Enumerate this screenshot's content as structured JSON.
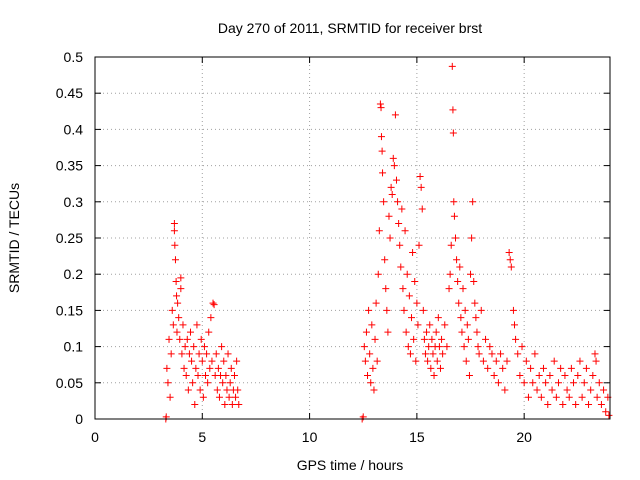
{
  "chart_data": {
    "type": "scatter",
    "title": "Day 270 of 2011, SRMTID for receiver brst",
    "xlabel": "GPS time / hours",
    "ylabel": "SRMTID / TECUs",
    "xlim": [
      0,
      24
    ],
    "ylim": [
      0,
      0.5
    ],
    "xticks": [
      0,
      5,
      10,
      15,
      20
    ],
    "yticks": [
      0,
      0.05,
      0.1,
      0.15,
      0.2,
      0.25,
      0.3,
      0.35,
      0.4,
      0.45,
      0.5
    ],
    "xtick_labels": [
      "0",
      "5",
      "10",
      "15",
      "20"
    ],
    "ytick_labels": [
      "0",
      "0.05",
      "0.1",
      "0.15",
      "0.2",
      "0.25",
      "0.3",
      "0.35",
      "0.4",
      "0.45",
      "0.5"
    ],
    "grid": true,
    "marker": "+",
    "color": "#ff0000",
    "series": [
      {
        "points": [
          [
            3.3,
            0.0
          ],
          [
            3.32,
            0.003
          ],
          [
            3.35,
            0.07
          ],
          [
            3.4,
            0.05
          ],
          [
            3.45,
            0.11
          ],
          [
            3.5,
            0.03
          ],
          [
            3.55,
            0.09
          ],
          [
            3.6,
            0.15
          ],
          [
            3.65,
            0.13
          ],
          [
            3.7,
            0.27
          ],
          [
            3.7,
            0.26
          ],
          [
            3.72,
            0.24
          ],
          [
            3.75,
            0.22
          ],
          [
            3.78,
            0.19
          ],
          [
            3.8,
            0.17
          ],
          [
            3.82,
            0.12
          ],
          [
            3.85,
            0.16
          ],
          [
            3.9,
            0.14
          ],
          [
            3.95,
            0.11
          ],
          [
            4.0,
            0.18
          ],
          [
            4.0,
            0.195
          ],
          [
            4.05,
            0.09
          ],
          [
            4.1,
            0.13
          ],
          [
            4.15,
            0.07
          ],
          [
            4.2,
            0.1
          ],
          [
            4.25,
            0.06
          ],
          [
            4.3,
            0.11
          ],
          [
            4.35,
            0.04
          ],
          [
            4.4,
            0.09
          ],
          [
            4.45,
            0.12
          ],
          [
            4.5,
            0.08
          ],
          [
            4.55,
            0.05
          ],
          [
            4.6,
            0.1
          ],
          [
            4.65,
            0.02
          ],
          [
            4.7,
            0.07
          ],
          [
            4.75,
            0.13
          ],
          [
            4.8,
            0.06
          ],
          [
            4.85,
            0.09
          ],
          [
            4.9,
            0.04
          ],
          [
            4.95,
            0.11
          ],
          [
            5.0,
            0.08
          ],
          [
            5.05,
            0.03
          ],
          [
            5.1,
            0.1
          ],
          [
            5.15,
            0.06
          ],
          [
            5.2,
            0.09
          ],
          [
            5.25,
            0.05
          ],
          [
            5.3,
            0.12
          ],
          [
            5.35,
            0.07
          ],
          [
            5.4,
            0.14
          ],
          [
            5.45,
            0.08
          ],
          [
            5.5,
            0.16
          ],
          [
            5.55,
            0.158
          ],
          [
            5.6,
            0.06
          ],
          [
            5.65,
            0.09
          ],
          [
            5.7,
            0.04
          ],
          [
            5.75,
            0.07
          ],
          [
            5.8,
            0.03
          ],
          [
            5.85,
            0.06
          ],
          [
            5.9,
            0.1
          ],
          [
            5.95,
            0.05
          ],
          [
            6.0,
            0.08
          ],
          [
            6.05,
            0.02
          ],
          [
            6.1,
            0.06
          ],
          [
            6.15,
            0.04
          ],
          [
            6.2,
            0.09
          ],
          [
            6.25,
            0.03
          ],
          [
            6.3,
            0.05
          ],
          [
            6.35,
            0.07
          ],
          [
            6.4,
            0.02
          ],
          [
            6.45,
            0.04
          ],
          [
            6.5,
            0.06
          ],
          [
            6.55,
            0.03
          ],
          [
            6.6,
            0.08
          ],
          [
            6.65,
            0.04
          ],
          [
            6.7,
            0.02
          ],
          [
            12.45,
            0.0
          ],
          [
            12.5,
            0.003
          ],
          [
            12.55,
            0.1
          ],
          [
            12.6,
            0.08
          ],
          [
            12.65,
            0.12
          ],
          [
            12.7,
            0.06
          ],
          [
            12.75,
            0.15
          ],
          [
            12.8,
            0.09
          ],
          [
            12.85,
            0.05
          ],
          [
            12.9,
            0.13
          ],
          [
            12.95,
            0.07
          ],
          [
            13.0,
            0.04
          ],
          [
            13.05,
            0.11
          ],
          [
            13.1,
            0.16
          ],
          [
            13.15,
            0.08
          ],
          [
            13.2,
            0.2
          ],
          [
            13.25,
            0.26
          ],
          [
            13.3,
            0.435
          ],
          [
            13.33,
            0.43
          ],
          [
            13.35,
            0.39
          ],
          [
            13.38,
            0.37
          ],
          [
            13.4,
            0.34
          ],
          [
            13.45,
            0.3
          ],
          [
            13.5,
            0.22
          ],
          [
            13.55,
            0.18
          ],
          [
            13.6,
            0.15
          ],
          [
            13.65,
            0.12
          ],
          [
            13.7,
            0.28
          ],
          [
            13.75,
            0.25
          ],
          [
            13.8,
            0.32
          ],
          [
            13.85,
            0.31
          ],
          [
            13.9,
            0.36
          ],
          [
            13.95,
            0.35
          ],
          [
            14.0,
            0.42
          ],
          [
            14.05,
            0.33
          ],
          [
            14.1,
            0.3
          ],
          [
            14.15,
            0.27
          ],
          [
            14.2,
            0.24
          ],
          [
            14.25,
            0.21
          ],
          [
            14.3,
            0.29
          ],
          [
            14.35,
            0.18
          ],
          [
            14.4,
            0.15
          ],
          [
            14.45,
            0.26
          ],
          [
            14.5,
            0.12
          ],
          [
            14.55,
            0.2
          ],
          [
            14.6,
            0.1
          ],
          [
            14.65,
            0.17
          ],
          [
            14.7,
            0.09
          ],
          [
            14.75,
            0.14
          ],
          [
            14.8,
            0.23
          ],
          [
            14.85,
            0.11
          ],
          [
            14.9,
            0.19
          ],
          [
            14.95,
            0.08
          ],
          [
            15.0,
            0.16
          ],
          [
            15.05,
            0.13
          ],
          [
            15.1,
            0.24
          ],
          [
            15.15,
            0.335
          ],
          [
            15.2,
            0.32
          ],
          [
            15.25,
            0.29
          ],
          [
            15.3,
            0.15
          ],
          [
            15.35,
            0.11
          ],
          [
            15.4,
            0.09
          ],
          [
            15.45,
            0.12
          ],
          [
            15.5,
            0.08
          ],
          [
            15.55,
            0.1
          ],
          [
            15.6,
            0.13
          ],
          [
            15.65,
            0.07
          ],
          [
            15.7,
            0.11
          ],
          [
            15.75,
            0.09
          ],
          [
            15.8,
            0.06
          ],
          [
            15.85,
            0.1
          ],
          [
            15.9,
            0.12
          ],
          [
            15.95,
            0.08
          ],
          [
            16.0,
            0.14
          ],
          [
            16.05,
            0.1
          ],
          [
            16.1,
            0.07
          ],
          [
            16.15,
            0.11
          ],
          [
            16.2,
            0.09
          ],
          [
            16.3,
            0.13
          ],
          [
            16.4,
            0.1
          ],
          [
            16.5,
            0.18
          ],
          [
            16.55,
            0.2
          ],
          [
            16.6,
            0.24
          ],
          [
            16.65,
            0.487
          ],
          [
            16.68,
            0.427
          ],
          [
            16.7,
            0.395
          ],
          [
            16.72,
            0.3
          ],
          [
            16.75,
            0.28
          ],
          [
            16.8,
            0.25
          ],
          [
            16.85,
            0.22
          ],
          [
            16.9,
            0.19
          ],
          [
            16.95,
            0.16
          ],
          [
            17.0,
            0.21
          ],
          [
            17.05,
            0.14
          ],
          [
            17.1,
            0.12
          ],
          [
            17.15,
            0.18
          ],
          [
            17.2,
            0.1
          ],
          [
            17.25,
            0.15
          ],
          [
            17.3,
            0.08
          ],
          [
            17.35,
            0.13
          ],
          [
            17.4,
            0.11
          ],
          [
            17.45,
            0.06
          ],
          [
            17.5,
            0.2
          ],
          [
            17.55,
            0.25
          ],
          [
            17.6,
            0.3
          ],
          [
            17.65,
            0.19
          ],
          [
            17.7,
            0.16
          ],
          [
            17.75,
            0.14
          ],
          [
            17.8,
            0.12
          ],
          [
            17.85,
            0.1
          ],
          [
            17.9,
            0.09
          ],
          [
            18.0,
            0.15
          ],
          [
            18.1,
            0.08
          ],
          [
            18.2,
            0.11
          ],
          [
            18.3,
            0.07
          ],
          [
            18.4,
            0.1
          ],
          [
            18.5,
            0.09
          ],
          [
            18.6,
            0.06
          ],
          [
            18.7,
            0.08
          ],
          [
            18.8,
            0.05
          ],
          [
            18.9,
            0.09
          ],
          [
            19.0,
            0.07
          ],
          [
            19.1,
            0.04
          ],
          [
            19.2,
            0.08
          ],
          [
            19.3,
            0.23
          ],
          [
            19.35,
            0.22
          ],
          [
            19.4,
            0.21
          ],
          [
            19.5,
            0.15
          ],
          [
            19.55,
            0.13
          ],
          [
            19.6,
            0.11
          ],
          [
            19.7,
            0.09
          ],
          [
            19.8,
            0.06
          ],
          [
            19.9,
            0.1
          ],
          [
            20.0,
            0.05
          ],
          [
            20.1,
            0.08
          ],
          [
            20.2,
            0.03
          ],
          [
            20.3,
            0.07
          ],
          [
            20.4,
            0.05
          ],
          [
            20.5,
            0.09
          ],
          [
            20.6,
            0.04
          ],
          [
            20.7,
            0.06
          ],
          [
            20.8,
            0.03
          ],
          [
            20.9,
            0.07
          ],
          [
            21.0,
            0.05
          ],
          [
            21.1,
            0.02
          ],
          [
            21.2,
            0.06
          ],
          [
            21.3,
            0.04
          ],
          [
            21.4,
            0.08
          ],
          [
            21.5,
            0.03
          ],
          [
            21.6,
            0.05
          ],
          [
            21.7,
            0.07
          ],
          [
            21.8,
            0.02
          ],
          [
            21.9,
            0.06
          ],
          [
            22.0,
            0.04
          ],
          [
            22.1,
            0.03
          ],
          [
            22.2,
            0.07
          ],
          [
            22.3,
            0.05
          ],
          [
            22.4,
            0.02
          ],
          [
            22.5,
            0.06
          ],
          [
            22.6,
            0.08
          ],
          [
            22.7,
            0.03
          ],
          [
            22.8,
            0.05
          ],
          [
            22.9,
            0.07
          ],
          [
            23.0,
            0.02
          ],
          [
            23.1,
            0.04
          ],
          [
            23.2,
            0.06
          ],
          [
            23.3,
            0.09
          ],
          [
            23.35,
            0.08
          ],
          [
            23.4,
            0.03
          ],
          [
            23.5,
            0.05
          ],
          [
            23.6,
            0.02
          ],
          [
            23.7,
            0.04
          ],
          [
            23.8,
            0.01
          ],
          [
            23.9,
            0.03
          ],
          [
            23.95,
            0.005
          ]
        ]
      }
    ]
  }
}
